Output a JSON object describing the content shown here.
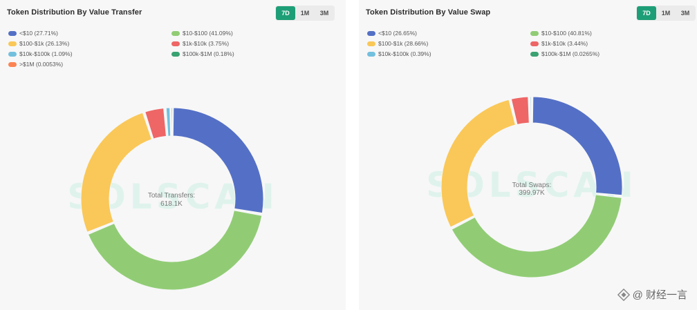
{
  "left": {
    "title": "Token Distribution By Value Transfer",
    "tabs": [
      {
        "label": "7D",
        "active": true
      },
      {
        "label": "1M",
        "active": false
      },
      {
        "label": "3M",
        "active": false
      }
    ],
    "legend": [
      {
        "label": "<$10 (27.71%)",
        "color": "#5470c6"
      },
      {
        "label": "$10-$100 (41.09%)",
        "color": "#91cc75"
      },
      {
        "label": "$100-$1k (26.13%)",
        "color": "#fac858"
      },
      {
        "label": "$1k-$10k (3.75%)",
        "color": "#ee6666"
      },
      {
        "label": "$10k-$100k (1.09%)",
        "color": "#73c0de"
      },
      {
        "label": "$100k-$1M (0.18%)",
        "color": "#3ba272"
      },
      {
        "label": ">$1M (0.0053%)",
        "color": "#fc8452"
      }
    ],
    "center_label": "Total Transfers:",
    "center_value": "618.1K",
    "watermark": "SOLSCAN"
  },
  "right": {
    "title": "Token Distribution By Value Swap",
    "tabs": [
      {
        "label": "7D",
        "active": true
      },
      {
        "label": "1M",
        "active": false
      },
      {
        "label": "3M",
        "active": false
      }
    ],
    "legend": [
      {
        "label": "<$10 (26.65%)",
        "color": "#5470c6"
      },
      {
        "label": "$10-$100 (40.81%)",
        "color": "#91cc75"
      },
      {
        "label": "$100-$1k (28.66%)",
        "color": "#fac858"
      },
      {
        "label": "$1k-$10k (3.44%)",
        "color": "#ee6666"
      },
      {
        "label": "$10k-$100k (0.39%)",
        "color": "#73c0de"
      },
      {
        "label": "$100k-$1M (0.0265%)",
        "color": "#3ba272"
      }
    ],
    "center_label": "Total Swaps:",
    "center_value": "399.97K",
    "watermark": "SOLSCAN"
  },
  "chart_data": [
    {
      "type": "pie",
      "title": "Token Distribution By Value Transfer",
      "categories": [
        "<$10",
        "$10-$100",
        "$100-$1k",
        "$1k-$10k",
        "$10k-$100k",
        "$100k-$1M",
        ">$1M"
      ],
      "values": [
        27.71,
        41.09,
        26.13,
        3.75,
        1.09,
        0.18,
        0.0053
      ],
      "unit": "%",
      "colors": [
        "#5470c6",
        "#91cc75",
        "#fac858",
        "#ee6666",
        "#73c0de",
        "#3ba272",
        "#fc8452"
      ],
      "legend": "top-left"
    },
    {
      "type": "pie",
      "title": "Token Distribution By Value Swap",
      "categories": [
        "<$10",
        "$10-$100",
        "$100-$1k",
        "$1k-$10k",
        "$10k-$100k",
        "$100k-$1M"
      ],
      "values": [
        26.65,
        40.81,
        28.66,
        3.44,
        0.39,
        0.0265
      ],
      "unit": "%",
      "colors": [
        "#5470c6",
        "#91cc75",
        "#fac858",
        "#ee6666",
        "#73c0de",
        "#3ba272"
      ],
      "legend": "top-left"
    }
  ],
  "footer": {
    "credit": "@ 财经一言"
  }
}
